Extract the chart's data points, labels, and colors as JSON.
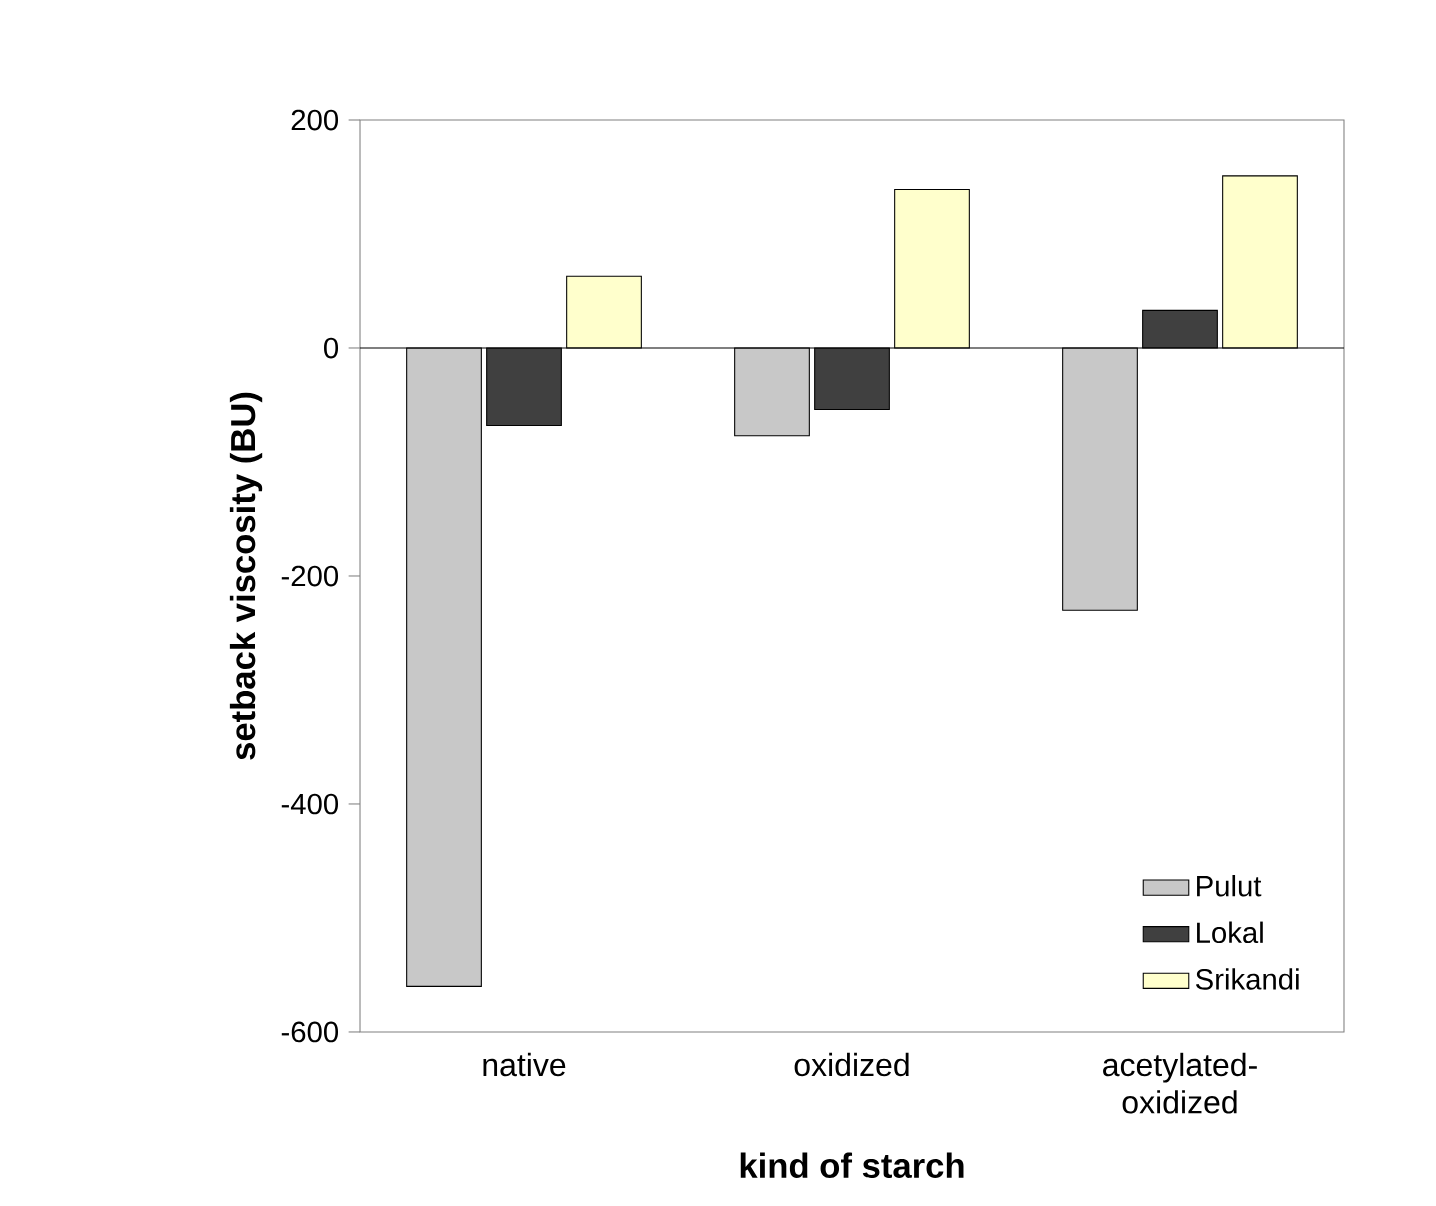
{
  "chart_data": {
    "type": "bar",
    "xlabel": "kind of starch",
    "ylabel": "setback viscosity (BU)",
    "categories": [
      "native",
      "oxidized",
      "acetylated-oxidized"
    ],
    "series": [
      {
        "name": "Pulut",
        "color": "#c8c8c8",
        "values": [
          -560,
          -77,
          -230
        ]
      },
      {
        "name": "Lokal",
        "color": "#404040",
        "values": [
          -68,
          -54,
          33
        ]
      },
      {
        "name": "Srikandi",
        "color": "#ffffcc",
        "values": [
          63,
          139,
          151
        ]
      }
    ],
    "ylim": [
      -600,
      200
    ],
    "yticks": [
      -600,
      -400,
      -200,
      0,
      200
    ],
    "grid": false,
    "ref_lines": [
      {
        "axis": "y",
        "value": 0,
        "color": "#000000"
      }
    ],
    "legend": "bottom right"
  }
}
